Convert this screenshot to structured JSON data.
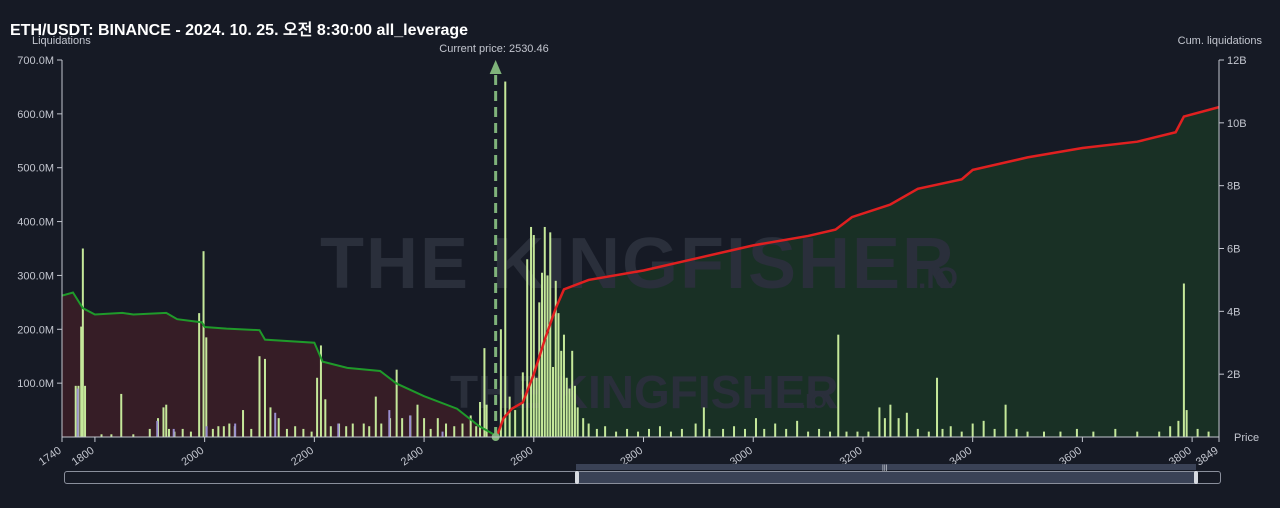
{
  "header": {
    "title": "ETH/USDT: BINANCE - 2024. 10. 25. 오전 8:30:00 all_leverage"
  },
  "watermark": {
    "brand": "THE KINGFISHER",
    "suffix": ".IO"
  },
  "chart_data": {
    "type": "bar",
    "ylabel_left": "Liquidations",
    "ylabel_right": "Cum. liquidations",
    "xlabel": "Price",
    "current_price_label": "Current price: 2530.46",
    "current_price": 2530.46,
    "xlim": [
      1740,
      3849
    ],
    "ylim_left": [
      0,
      700000000
    ],
    "ylim_right": [
      0,
      12000000000
    ],
    "x_ticks": [
      "1740",
      "1800",
      "2000",
      "2200",
      "2400",
      "2600",
      "2800",
      "3000",
      "3200",
      "3400",
      "3600",
      "3800",
      "3849"
    ],
    "y_left_ticks": [
      "100.0M",
      "200.0M",
      "300.0M",
      "400.0M",
      "500.0M",
      "600.0M",
      "700.0M"
    ],
    "y_right_ticks": [
      "2B",
      "4B",
      "6B",
      "8B",
      "10B",
      "12B"
    ],
    "colors": {
      "bars": "#c5e89a",
      "bars_alt": "#9a8fd0",
      "long_line": "#1f9a2a",
      "short_line": "#e02020",
      "long_fill": "#3a1e27",
      "short_fill": "#1a3326",
      "current_price": "#7fb37a"
    },
    "bars": [
      {
        "x": 1765,
        "v": 95
      },
      {
        "x": 1770,
        "v": 95
      },
      {
        "x": 1775,
        "v": 205
      },
      {
        "x": 1778,
        "v": 350
      },
      {
        "x": 1782,
        "v": 95
      },
      {
        "x": 1812,
        "v": 5
      },
      {
        "x": 1830,
        "v": 5
      },
      {
        "x": 1848,
        "v": 80
      },
      {
        "x": 1870,
        "v": 5
      },
      {
        "x": 1900,
        "v": 15
      },
      {
        "x": 1915,
        "v": 35
      },
      {
        "x": 1925,
        "v": 55
      },
      {
        "x": 1930,
        "v": 60
      },
      {
        "x": 1935,
        "v": 15
      },
      {
        "x": 1945,
        "v": 10
      },
      {
        "x": 1960,
        "v": 15
      },
      {
        "x": 1975,
        "v": 10
      },
      {
        "x": 1990,
        "v": 230
      },
      {
        "x": 1998,
        "v": 345
      },
      {
        "x": 2003,
        "v": 185
      },
      {
        "x": 2015,
        "v": 15
      },
      {
        "x": 2025,
        "v": 20
      },
      {
        "x": 2035,
        "v": 20
      },
      {
        "x": 2045,
        "v": 25
      },
      {
        "x": 2055,
        "v": 20
      },
      {
        "x": 2070,
        "v": 50
      },
      {
        "x": 2085,
        "v": 15
      },
      {
        "x": 2100,
        "v": 150
      },
      {
        "x": 2110,
        "v": 145
      },
      {
        "x": 2120,
        "v": 55
      },
      {
        "x": 2135,
        "v": 35
      },
      {
        "x": 2150,
        "v": 15
      },
      {
        "x": 2165,
        "v": 20
      },
      {
        "x": 2180,
        "v": 15
      },
      {
        "x": 2195,
        "v": 10
      },
      {
        "x": 2205,
        "v": 110
      },
      {
        "x": 2212,
        "v": 170
      },
      {
        "x": 2220,
        "v": 70
      },
      {
        "x": 2230,
        "v": 20
      },
      {
        "x": 2245,
        "v": 25
      },
      {
        "x": 2258,
        "v": 20
      },
      {
        "x": 2270,
        "v": 25
      },
      {
        "x": 2290,
        "v": 25
      },
      {
        "x": 2300,
        "v": 20
      },
      {
        "x": 2312,
        "v": 75
      },
      {
        "x": 2322,
        "v": 25
      },
      {
        "x": 2338,
        "v": 35
      },
      {
        "x": 2350,
        "v": 125
      },
      {
        "x": 2360,
        "v": 35
      },
      {
        "x": 2375,
        "v": 40
      },
      {
        "x": 2388,
        "v": 60
      },
      {
        "x": 2400,
        "v": 35
      },
      {
        "x": 2412,
        "v": 15
      },
      {
        "x": 2425,
        "v": 35
      },
      {
        "x": 2440,
        "v": 25
      },
      {
        "x": 2455,
        "v": 20
      },
      {
        "x": 2470,
        "v": 25
      },
      {
        "x": 2485,
        "v": 40
      },
      {
        "x": 2495,
        "v": 20
      },
      {
        "x": 2502,
        "v": 65
      },
      {
        "x": 2510,
        "v": 165
      },
      {
        "x": 2514,
        "v": 60
      },
      {
        "x": 2540,
        "v": 200
      },
      {
        "x": 2548,
        "v": 660
      },
      {
        "x": 2556,
        "v": 75
      },
      {
        "x": 2566,
        "v": 50
      },
      {
        "x": 2580,
        "v": 120
      },
      {
        "x": 2588,
        "v": 330
      },
      {
        "x": 2595,
        "v": 390
      },
      {
        "x": 2600,
        "v": 375
      },
      {
        "x": 2605,
        "v": 110
      },
      {
        "x": 2610,
        "v": 250
      },
      {
        "x": 2615,
        "v": 305
      },
      {
        "x": 2620,
        "v": 390
      },
      {
        "x": 2625,
        "v": 300
      },
      {
        "x": 2630,
        "v": 380
      },
      {
        "x": 2635,
        "v": 130
      },
      {
        "x": 2640,
        "v": 290
      },
      {
        "x": 2645,
        "v": 230
      },
      {
        "x": 2650,
        "v": 160
      },
      {
        "x": 2655,
        "v": 190
      },
      {
        "x": 2660,
        "v": 110
      },
      {
        "x": 2665,
        "v": 90
      },
      {
        "x": 2670,
        "v": 160
      },
      {
        "x": 2675,
        "v": 95
      },
      {
        "x": 2680,
        "v": 55
      },
      {
        "x": 2690,
        "v": 35
      },
      {
        "x": 2700,
        "v": 25
      },
      {
        "x": 2715,
        "v": 15
      },
      {
        "x": 2730,
        "v": 20
      },
      {
        "x": 2750,
        "v": 10
      },
      {
        "x": 2770,
        "v": 15
      },
      {
        "x": 2790,
        "v": 10
      },
      {
        "x": 2810,
        "v": 15
      },
      {
        "x": 2830,
        "v": 20
      },
      {
        "x": 2850,
        "v": 10
      },
      {
        "x": 2870,
        "v": 15
      },
      {
        "x": 2895,
        "v": 25
      },
      {
        "x": 2910,
        "v": 55
      },
      {
        "x": 2920,
        "v": 15
      },
      {
        "x": 2945,
        "v": 15
      },
      {
        "x": 2965,
        "v": 20
      },
      {
        "x": 2985,
        "v": 15
      },
      {
        "x": 3005,
        "v": 35
      },
      {
        "x": 3020,
        "v": 15
      },
      {
        "x": 3040,
        "v": 25
      },
      {
        "x": 3060,
        "v": 15
      },
      {
        "x": 3080,
        "v": 30
      },
      {
        "x": 3100,
        "v": 10
      },
      {
        "x": 3120,
        "v": 15
      },
      {
        "x": 3140,
        "v": 10
      },
      {
        "x": 3155,
        "v": 190
      },
      {
        "x": 3170,
        "v": 10
      },
      {
        "x": 3190,
        "v": 10
      },
      {
        "x": 3210,
        "v": 10
      },
      {
        "x": 3230,
        "v": 55
      },
      {
        "x": 3240,
        "v": 35
      },
      {
        "x": 3250,
        "v": 60
      },
      {
        "x": 3265,
        "v": 35
      },
      {
        "x": 3280,
        "v": 45
      },
      {
        "x": 3300,
        "v": 15
      },
      {
        "x": 3320,
        "v": 10
      },
      {
        "x": 3335,
        "v": 110
      },
      {
        "x": 3345,
        "v": 15
      },
      {
        "x": 3360,
        "v": 20
      },
      {
        "x": 3380,
        "v": 10
      },
      {
        "x": 3400,
        "v": 25
      },
      {
        "x": 3420,
        "v": 30
      },
      {
        "x": 3440,
        "v": 15
      },
      {
        "x": 3460,
        "v": 60
      },
      {
        "x": 3480,
        "v": 15
      },
      {
        "x": 3500,
        "v": 10
      },
      {
        "x": 3530,
        "v": 10
      },
      {
        "x": 3560,
        "v": 10
      },
      {
        "x": 3590,
        "v": 15
      },
      {
        "x": 3620,
        "v": 10
      },
      {
        "x": 3660,
        "v": 15
      },
      {
        "x": 3700,
        "v": 10
      },
      {
        "x": 3740,
        "v": 10
      },
      {
        "x": 3760,
        "v": 20
      },
      {
        "x": 3775,
        "v": 30
      },
      {
        "x": 3785,
        "v": 285
      },
      {
        "x": 3790,
        "v": 50
      },
      {
        "x": 3810,
        "v": 15
      },
      {
        "x": 3830,
        "v": 10
      }
    ],
    "alt_bars": [
      {
        "x": 1765,
        "v": 90
      },
      {
        "x": 1910,
        "v": 30
      },
      {
        "x": 1940,
        "v": 15
      },
      {
        "x": 2000,
        "v": 20
      },
      {
        "x": 2052,
        "v": 25
      },
      {
        "x": 2125,
        "v": 45
      },
      {
        "x": 2240,
        "v": 25
      },
      {
        "x": 2333,
        "v": 50
      },
      {
        "x": 2371,
        "v": 40
      },
      {
        "x": 2430,
        "v": 10
      }
    ],
    "long_cumulative": [
      [
        1740,
        4.5
      ],
      [
        1760,
        4.6
      ],
      [
        1778,
        4.1
      ],
      [
        1800,
        3.9
      ],
      [
        1850,
        3.95
      ],
      [
        1870,
        3.9
      ],
      [
        1930,
        3.95
      ],
      [
        1950,
        3.75
      ],
      [
        1995,
        3.65
      ],
      [
        2000,
        3.5
      ],
      [
        2040,
        3.45
      ],
      [
        2100,
        3.4
      ],
      [
        2110,
        3.1
      ],
      [
        2200,
        3.0
      ],
      [
        2215,
        2.4
      ],
      [
        2260,
        2.2
      ],
      [
        2320,
        2.1
      ],
      [
        2350,
        1.7
      ],
      [
        2400,
        1.3
      ],
      [
        2460,
        0.9
      ],
      [
        2500,
        0.35
      ],
      [
        2530,
        0.05
      ]
    ],
    "short_cumulative": [
      [
        2533,
        0.05
      ],
      [
        2545,
        0.6
      ],
      [
        2560,
        0.9
      ],
      [
        2580,
        1.1
      ],
      [
        2600,
        2.0
      ],
      [
        2620,
        3.1
      ],
      [
        2640,
        4.1
      ],
      [
        2655,
        4.7
      ],
      [
        2700,
        5.0
      ],
      [
        2800,
        5.3
      ],
      [
        2900,
        5.7
      ],
      [
        3000,
        6.1
      ],
      [
        3100,
        6.4
      ],
      [
        3150,
        6.6
      ],
      [
        3180,
        7.0
      ],
      [
        3250,
        7.4
      ],
      [
        3300,
        7.9
      ],
      [
        3380,
        8.2
      ],
      [
        3400,
        8.5
      ],
      [
        3500,
        8.9
      ],
      [
        3600,
        9.2
      ],
      [
        3700,
        9.4
      ],
      [
        3770,
        9.7
      ],
      [
        3785,
        10.2
      ],
      [
        3849,
        10.5
      ]
    ]
  },
  "scrollbar": {
    "window_start": 0.44,
    "window_end": 0.98
  }
}
